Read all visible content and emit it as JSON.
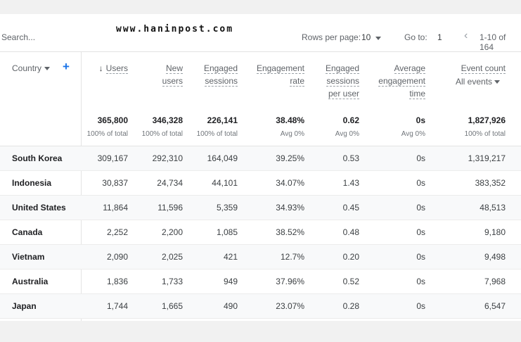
{
  "toolbar": {
    "search_placeholder": "Search...",
    "watermark": "www.haninpost.com",
    "rows_per_page_label": "Rows per page:",
    "rows_per_page_value": "10",
    "go_to_label": "Go to:",
    "go_to_value": "1",
    "prev_symbol": "‹",
    "range_text": "1-10 of 164"
  },
  "table": {
    "dimension_label": "Country",
    "add_symbol": "+",
    "sort_arrow": "↓",
    "event_filter_label": "All events",
    "columns": [
      {
        "lines": [
          "Users"
        ],
        "total": "365,800",
        "sub": "100% of total"
      },
      {
        "lines": [
          "New",
          "users"
        ],
        "total": "346,328",
        "sub": "100% of total"
      },
      {
        "lines": [
          "Engaged",
          "sessions"
        ],
        "total": "226,141",
        "sub": "100% of total"
      },
      {
        "lines": [
          "Engagement",
          "rate"
        ],
        "total": "38.48%",
        "sub": "Avg 0%"
      },
      {
        "lines": [
          "Engaged",
          "sessions",
          "per user"
        ],
        "total": "0.62",
        "sub": "Avg 0%"
      },
      {
        "lines": [
          "Average",
          "engagement",
          "time"
        ],
        "total": "0s",
        "sub": "Avg 0%"
      },
      {
        "lines": [
          "Event count"
        ],
        "total": "1,827,926",
        "sub": "100% of total"
      }
    ],
    "rows": [
      {
        "country": "South Korea",
        "values": [
          "309,167",
          "292,310",
          "164,049",
          "39.25%",
          "0.53",
          "0s",
          "1,319,217"
        ]
      },
      {
        "country": "Indonesia",
        "values": [
          "30,837",
          "24,734",
          "44,101",
          "34.07%",
          "1.43",
          "0s",
          "383,352"
        ]
      },
      {
        "country": "United States",
        "values": [
          "11,864",
          "11,596",
          "5,359",
          "34.93%",
          "0.45",
          "0s",
          "48,513"
        ]
      },
      {
        "country": "Canada",
        "values": [
          "2,252",
          "2,200",
          "1,085",
          "38.52%",
          "0.48",
          "0s",
          "9,180"
        ]
      },
      {
        "country": "Vietnam",
        "values": [
          "2,090",
          "2,025",
          "421",
          "12.7%",
          "0.20",
          "0s",
          "9,498"
        ]
      },
      {
        "country": "Australia",
        "values": [
          "1,836",
          "1,733",
          "949",
          "37.96%",
          "0.52",
          "0s",
          "7,968"
        ]
      },
      {
        "country": "Japan",
        "values": [
          "1,744",
          "1,665",
          "490",
          "23.07%",
          "0.28",
          "0s",
          "6,547"
        ]
      }
    ]
  }
}
